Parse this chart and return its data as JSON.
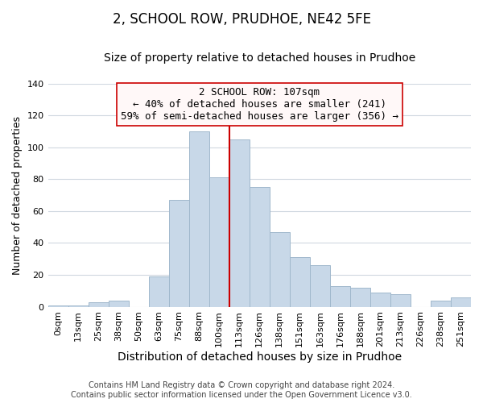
{
  "title": "2, SCHOOL ROW, PRUDHOE, NE42 5FE",
  "subtitle": "Size of property relative to detached houses in Prudhoe",
  "xlabel": "Distribution of detached houses by size in Prudhoe",
  "ylabel": "Number of detached properties",
  "bar_labels": [
    "0sqm",
    "13sqm",
    "25sqm",
    "38sqm",
    "50sqm",
    "63sqm",
    "75sqm",
    "88sqm",
    "100sqm",
    "113sqm",
    "126sqm",
    "138sqm",
    "151sqm",
    "163sqm",
    "176sqm",
    "188sqm",
    "201sqm",
    "213sqm",
    "226sqm",
    "238sqm",
    "251sqm"
  ],
  "bar_values": [
    1,
    1,
    3,
    4,
    0,
    19,
    67,
    110,
    81,
    105,
    75,
    47,
    31,
    26,
    13,
    12,
    9,
    8,
    0,
    4,
    6
  ],
  "bar_color": "#c8d8e8",
  "bar_edge_color": "#a0b8cc",
  "grid_color": "#d0d8e0",
  "vline_x": 8.5,
  "vline_color": "#cc0000",
  "annotation_title": "2 SCHOOL ROW: 107sqm",
  "annotation_line1": "← 40% of detached houses are smaller (241)",
  "annotation_line2": "59% of semi-detached houses are larger (356) →",
  "annotation_box_facecolor": "#fff8f8",
  "annotation_box_edgecolor": "#cc0000",
  "ylim": [
    0,
    140
  ],
  "yticks": [
    0,
    20,
    40,
    60,
    80,
    100,
    120,
    140
  ],
  "footer_line1": "Contains HM Land Registry data © Crown copyright and database right 2024.",
  "footer_line2": "Contains public sector information licensed under the Open Government Licence v3.0.",
  "title_fontsize": 12,
  "subtitle_fontsize": 10,
  "xlabel_fontsize": 10,
  "ylabel_fontsize": 9,
  "tick_fontsize": 8,
  "footer_fontsize": 7,
  "annotation_fontsize": 9
}
